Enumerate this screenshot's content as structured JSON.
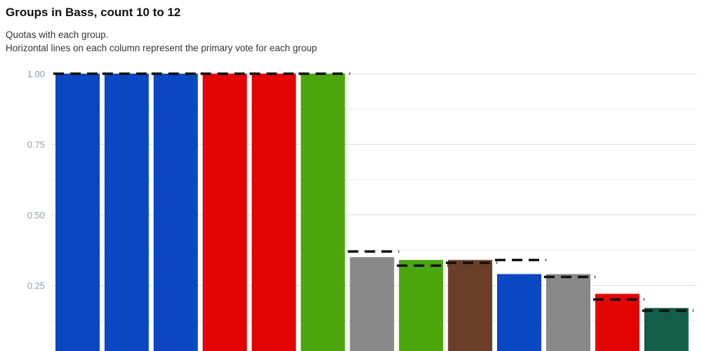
{
  "chart_data": {
    "type": "bar",
    "title": "Groups in Bass, count 10 to 12",
    "subtitle_lines": [
      "Quotas with each group.",
      "Horizontal lines on each column represent the primary vote for each group"
    ],
    "xlabel": "",
    "ylabel": "",
    "ylim": [
      0,
      1.0
    ],
    "yticks": [
      "0.25",
      "0.50",
      "0.75",
      "1.00"
    ],
    "grid": true,
    "legend": "none",
    "bars": [
      {
        "value": 1.0,
        "primary_vote": 1.0,
        "color": "#0a47c2"
      },
      {
        "value": 1.0,
        "primary_vote": 1.0,
        "color": "#0a47c2"
      },
      {
        "value": 1.0,
        "primary_vote": 1.0,
        "color": "#0a47c2"
      },
      {
        "value": 1.0,
        "primary_vote": 1.0,
        "color": "#e30303"
      },
      {
        "value": 1.0,
        "primary_vote": 1.0,
        "color": "#e30303"
      },
      {
        "value": 1.0,
        "primary_vote": 1.0,
        "color": "#4da60c"
      },
      {
        "value": 0.35,
        "primary_vote": 0.37,
        "color": "#888888"
      },
      {
        "value": 0.34,
        "primary_vote": 0.32,
        "color": "#4da60c"
      },
      {
        "value": 0.34,
        "primary_vote": 0.33,
        "color": "#6b3e2a"
      },
      {
        "value": 0.29,
        "primary_vote": 0.34,
        "color": "#0a47c2"
      },
      {
        "value": 0.29,
        "primary_vote": 0.28,
        "color": "#888888"
      },
      {
        "value": 0.22,
        "primary_vote": 0.2,
        "color": "#e30303"
      },
      {
        "value": 0.17,
        "primary_vote": 0.16,
        "color": "#125e48"
      }
    ]
  }
}
